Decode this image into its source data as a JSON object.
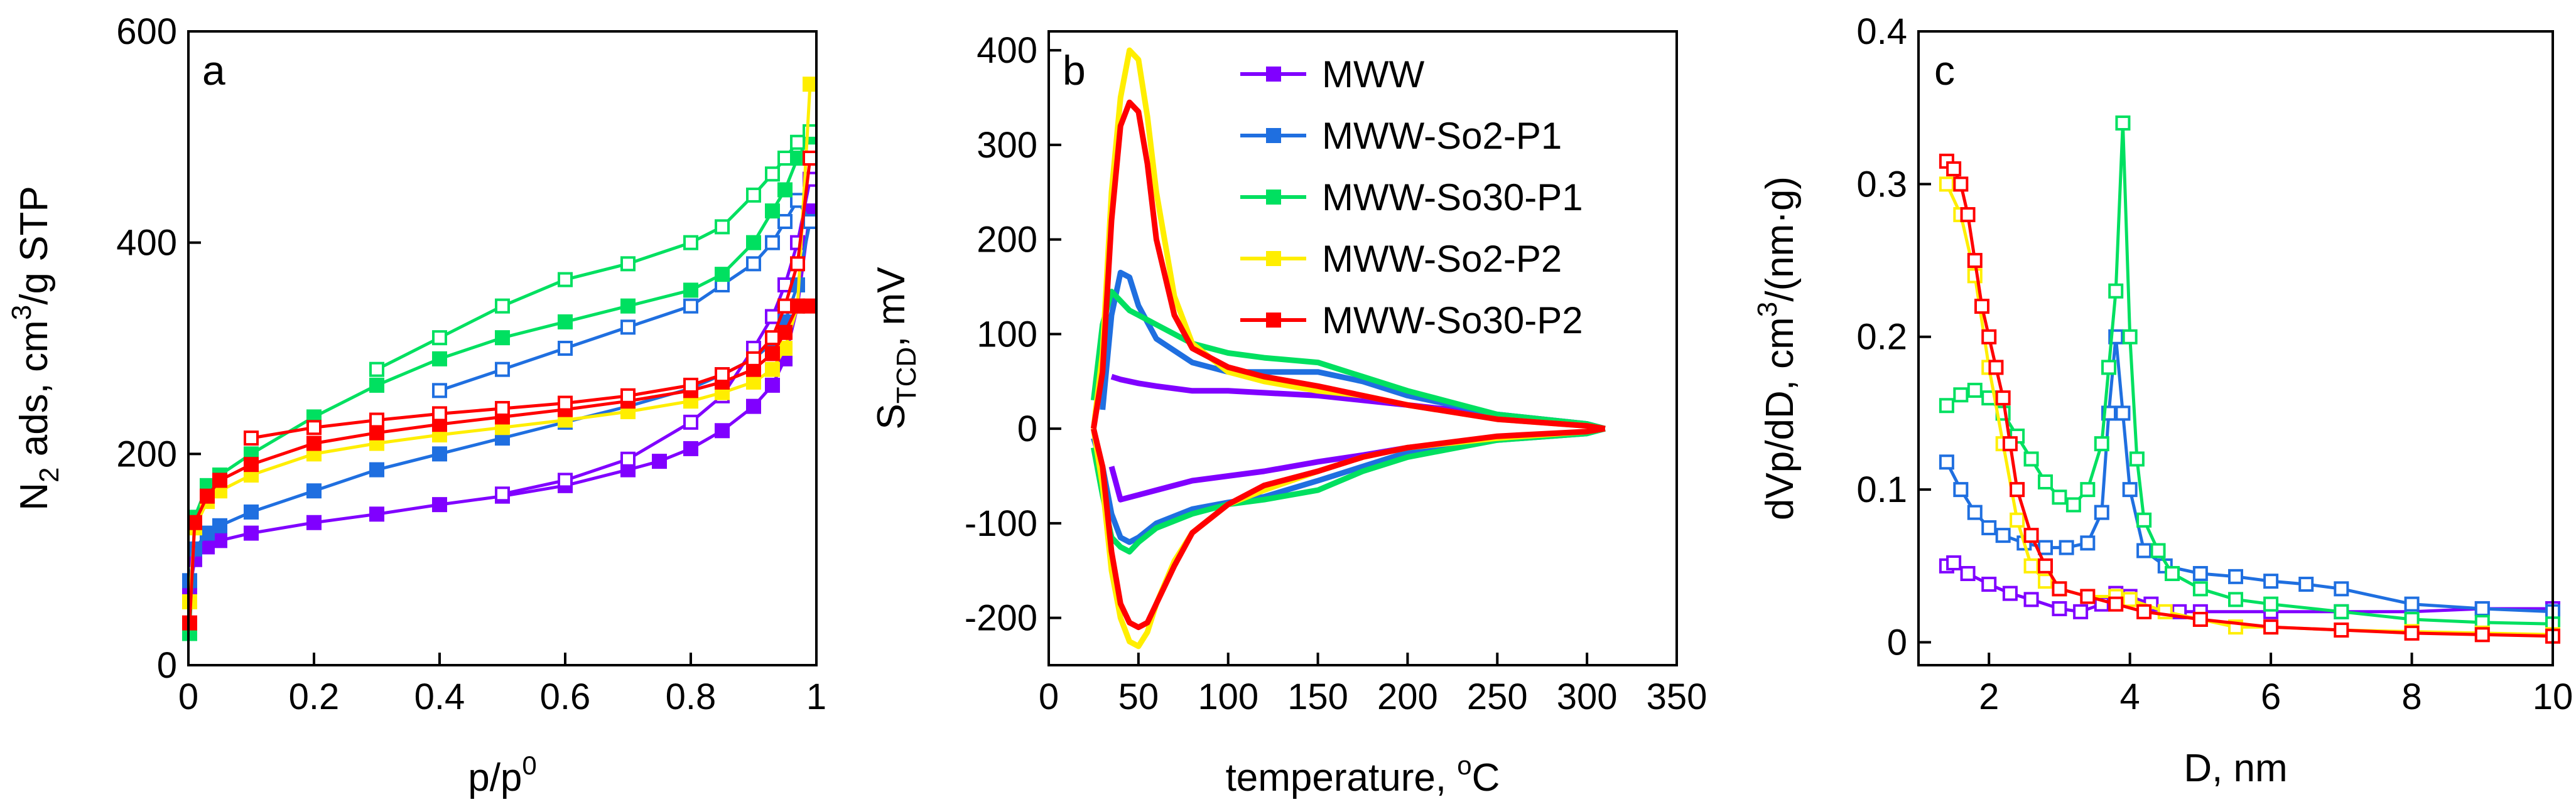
{
  "chart_data": [
    {
      "type": "line",
      "panel_label": "a",
      "xlabel_base": "p/p",
      "xlabel_sup": "0",
      "ylabel_a": "N",
      "ylabel_sub": "2",
      "ylabel_b": " ads, cm",
      "ylabel_sup": "3",
      "ylabel_c": "/g STP",
      "xlim": [
        0,
        1
      ],
      "ylim": [
        0,
        600
      ],
      "xticks": [
        0,
        0.2,
        0.4,
        0.6,
        0.8,
        1
      ],
      "xtick_labels": [
        "0",
        "0.2",
        "0.4",
        "0.6",
        "0.8",
        "1"
      ],
      "yticks": [
        0,
        200,
        400,
        600
      ],
      "ytick_labels": [
        "0",
        "200",
        "400",
        "600"
      ],
      "series": [
        {
          "name": "MWW adsorption",
          "color": "#8000ff",
          "marker": "filled",
          "x": [
            0.002,
            0.01,
            0.03,
            0.05,
            0.1,
            0.2,
            0.3,
            0.4,
            0.5,
            0.6,
            0.7,
            0.75,
            0.8,
            0.85,
            0.9,
            0.93,
            0.95,
            0.97,
            0.99
          ],
          "y": [
            70,
            100,
            112,
            118,
            125,
            135,
            143,
            152,
            160,
            170,
            185,
            193,
            205,
            222,
            245,
            265,
            290,
            340,
            430
          ]
        },
        {
          "name": "MWW desorption",
          "color": "#8000ff",
          "marker": "open",
          "x": [
            0.5,
            0.6,
            0.7,
            0.8,
            0.85,
            0.9,
            0.93,
            0.95,
            0.97,
            0.99
          ],
          "y": [
            162,
            175,
            195,
            230,
            255,
            300,
            330,
            360,
            400,
            460
          ]
        },
        {
          "name": "MWW-So2-P1 adsorption",
          "color": "#1f6fe0",
          "marker": "filled",
          "x": [
            0.002,
            0.01,
            0.03,
            0.05,
            0.1,
            0.2,
            0.3,
            0.4,
            0.5,
            0.6,
            0.7,
            0.8,
            0.85,
            0.9,
            0.93,
            0.95,
            0.97,
            0.99
          ],
          "y": [
            80,
            110,
            125,
            132,
            145,
            165,
            185,
            200,
            215,
            230,
            245,
            262,
            275,
            290,
            305,
            325,
            360,
            420
          ]
        },
        {
          "name": "MWW-So2-P1 desorption",
          "color": "#1f6fe0",
          "marker": "open",
          "x": [
            0.4,
            0.5,
            0.6,
            0.7,
            0.8,
            0.85,
            0.9,
            0.93,
            0.95,
            0.97,
            0.99
          ],
          "y": [
            260,
            280,
            300,
            320,
            340,
            360,
            380,
            400,
            420,
            440,
            420
          ]
        },
        {
          "name": "MWW-So30-P1 adsorption",
          "color": "#00e060",
          "marker": "filled",
          "x": [
            0.002,
            0.01,
            0.03,
            0.05,
            0.1,
            0.2,
            0.3,
            0.4,
            0.5,
            0.6,
            0.7,
            0.8,
            0.85,
            0.9,
            0.93,
            0.95,
            0.97,
            0.99
          ],
          "y": [
            30,
            140,
            170,
            180,
            200,
            235,
            265,
            290,
            310,
            325,
            340,
            355,
            370,
            400,
            430,
            450,
            480,
            500
          ]
        },
        {
          "name": "MWW-So30-P1 desorption",
          "color": "#00e060",
          "marker": "open",
          "x": [
            0.3,
            0.4,
            0.5,
            0.6,
            0.7,
            0.8,
            0.85,
            0.9,
            0.93,
            0.95,
            0.97,
            0.99
          ],
          "y": [
            280,
            310,
            340,
            365,
            380,
            400,
            415,
            445,
            465,
            480,
            495,
            505
          ]
        },
        {
          "name": "MWW-So2-P2 adsorption",
          "color": "#ffee00",
          "marker": "filled",
          "x": [
            0.002,
            0.01,
            0.03,
            0.05,
            0.1,
            0.2,
            0.3,
            0.4,
            0.5,
            0.6,
            0.7,
            0.8,
            0.85,
            0.9,
            0.93,
            0.95,
            0.97,
            0.99
          ],
          "y": [
            60,
            130,
            155,
            165,
            180,
            200,
            210,
            218,
            225,
            232,
            240,
            250,
            258,
            268,
            280,
            300,
            340,
            550
          ]
        },
        {
          "name": "MWW-So30-P2 adsorption",
          "color": "#ff0000",
          "marker": "filled",
          "x": [
            0.002,
            0.01,
            0.03,
            0.05,
            0.1,
            0.2,
            0.3,
            0.4,
            0.5,
            0.6,
            0.7,
            0.8,
            0.85,
            0.9,
            0.93,
            0.95,
            0.97,
            0.99
          ],
          "y": [
            40,
            135,
            160,
            175,
            190,
            210,
            220,
            228,
            235,
            242,
            250,
            260,
            268,
            280,
            295,
            315,
            340,
            340
          ]
        },
        {
          "name": "MWW-So30-P2 desorption",
          "color": "#ff0000",
          "marker": "open",
          "x": [
            0.1,
            0.2,
            0.3,
            0.4,
            0.5,
            0.6,
            0.7,
            0.8,
            0.85,
            0.9,
            0.93,
            0.95,
            0.97,
            0.99
          ],
          "y": [
            215,
            225,
            232,
            238,
            243,
            248,
            255,
            265,
            275,
            290,
            310,
            340,
            380,
            480
          ]
        }
      ]
    },
    {
      "type": "line",
      "panel_label": "b",
      "xlabel_a": "temperature, ",
      "xlabel_sup": "o",
      "xlabel_b": "C",
      "ylabel_a": "S",
      "ylabel_sub": "TCD",
      "ylabel_b": ", mV",
      "xlim": [
        0,
        350
      ],
      "ylim": [
        -250,
        420
      ],
      "xticks": [
        0,
        50,
        100,
        150,
        200,
        250,
        300,
        350
      ],
      "xtick_labels": [
        "0",
        "50",
        "100",
        "150",
        "200",
        "250",
        "300",
        "350"
      ],
      "yticks": [
        -200,
        -100,
        0,
        100,
        200,
        300,
        400
      ],
      "ytick_labels": [
        "-200",
        "-100",
        "0",
        "100",
        "200",
        "300",
        "400"
      ],
      "series": [
        {
          "name": "MWW",
          "color": "#8000ff",
          "x": [
            35,
            40,
            50,
            60,
            80,
            100,
            120,
            150,
            175,
            200,
            250,
            300,
            310
          ],
          "y": [
            55,
            52,
            48,
            45,
            40,
            40,
            38,
            35,
            30,
            25,
            15,
            5,
            0
          ],
          "x2": [
            35,
            40,
            50,
            60,
            80,
            100,
            120,
            150,
            175,
            200,
            250,
            300,
            310
          ],
          "y2": [
            -40,
            -75,
            -70,
            -65,
            -55,
            -50,
            -45,
            -35,
            -28,
            -20,
            -10,
            -3,
            0
          ]
        },
        {
          "name": "MWW-So2-P1",
          "color": "#1f6fe0",
          "x": [
            30,
            35,
            40,
            45,
            50,
            60,
            80,
            100,
            120,
            150,
            175,
            200,
            250,
            300,
            310
          ],
          "y": [
            20,
            120,
            165,
            160,
            130,
            95,
            70,
            60,
            60,
            60,
            50,
            35,
            15,
            5,
            0
          ],
          "x2": [
            25,
            30,
            35,
            40,
            45,
            50,
            60,
            80,
            100,
            120,
            150,
            175,
            200,
            250,
            300,
            310
          ],
          "y2": [
            -10,
            -40,
            -90,
            -115,
            -120,
            -115,
            -100,
            -85,
            -78,
            -72,
            -55,
            -40,
            -25,
            -12,
            -5,
            0
          ]
        },
        {
          "name": "MWW-So30-P1",
          "color": "#00e060",
          "x": [
            25,
            30,
            35,
            40,
            45,
            50,
            60,
            80,
            100,
            120,
            150,
            175,
            200,
            250,
            300,
            310
          ],
          "y": [
            30,
            110,
            145,
            135,
            125,
            120,
            110,
            90,
            80,
            75,
            70,
            55,
            40,
            15,
            5,
            0
          ],
          "x2": [
            25,
            30,
            35,
            40,
            45,
            50,
            60,
            80,
            100,
            120,
            150,
            175,
            200,
            250,
            300,
            310
          ],
          "y2": [
            -20,
            -70,
            -115,
            -125,
            -130,
            -120,
            -105,
            -90,
            -80,
            -75,
            -65,
            -45,
            -30,
            -12,
            -5,
            0
          ]
        },
        {
          "name": "MWW-So2-P2",
          "color": "#ffee00",
          "x": [
            25,
            30,
            35,
            40,
            45,
            50,
            55,
            60,
            70,
            80,
            100,
            120,
            150,
            175,
            200,
            250,
            300,
            310
          ],
          "y": [
            0,
            80,
            250,
            350,
            400,
            390,
            330,
            250,
            140,
            90,
            60,
            50,
            40,
            35,
            25,
            10,
            3,
            0
          ],
          "x2": [
            25,
            30,
            35,
            40,
            45,
            50,
            55,
            60,
            70,
            80,
            100,
            120,
            150,
            175,
            200,
            250,
            300,
            310
          ],
          "y2": [
            0,
            -60,
            -150,
            -200,
            -225,
            -230,
            -215,
            -185,
            -140,
            -110,
            -80,
            -65,
            -45,
            -30,
            -20,
            -10,
            -3,
            0
          ]
        },
        {
          "name": "MWW-So30-P2",
          "color": "#ff0000",
          "x": [
            25,
            30,
            35,
            40,
            45,
            50,
            55,
            60,
            70,
            80,
            100,
            120,
            150,
            175,
            200,
            250,
            300,
            310
          ],
          "y": [
            0,
            60,
            220,
            320,
            345,
            335,
            280,
            200,
            120,
            85,
            65,
            55,
            45,
            35,
            25,
            10,
            3,
            0
          ],
          "x2": [
            25,
            30,
            35,
            40,
            45,
            50,
            55,
            60,
            70,
            80,
            100,
            120,
            150,
            175,
            200,
            250,
            300,
            310
          ],
          "y2": [
            0,
            -40,
            -130,
            -185,
            -205,
            -210,
            -205,
            -185,
            -145,
            -110,
            -80,
            -60,
            -45,
            -30,
            -20,
            -8,
            -3,
            0
          ]
        }
      ]
    },
    {
      "type": "line",
      "panel_label": "c",
      "xlabel": "D, nm",
      "ylabel_a": "dVp/dD, cm",
      "ylabel_sup": "3",
      "ylabel_b": "/(nm·g)",
      "xlim": [
        1,
        10
      ],
      "ylim": [
        -0.015,
        0.4
      ],
      "xticks": [
        2,
        4,
        6,
        8,
        10
      ],
      "xtick_labels": [
        "2",
        "4",
        "6",
        "8",
        "10"
      ],
      "yticks": [
        0,
        0.1,
        0.2,
        0.3,
        0.4
      ],
      "ytick_labels": [
        "0",
        "0.1",
        "0.2",
        "0.3",
        "0.4"
      ],
      "series": [
        {
          "name": "MWW",
          "color": "#8000ff",
          "x": [
            1.4,
            1.5,
            1.7,
            2.0,
            2.3,
            2.6,
            3.0,
            3.3,
            3.6,
            3.8,
            4.0,
            4.3,
            4.7,
            5.0,
            6,
            7,
            8,
            9,
            10
          ],
          "y": [
            0.05,
            0.052,
            0.045,
            0.038,
            0.032,
            0.028,
            0.022,
            0.02,
            0.025,
            0.032,
            0.03,
            0.025,
            0.02,
            0.02,
            0.02,
            0.02,
            0.02,
            0.022,
            0.022
          ]
        },
        {
          "name": "MWW-So2-P1",
          "color": "#1f6fe0",
          "x": [
            1.4,
            1.6,
            1.8,
            2.0,
            2.2,
            2.5,
            2.8,
            3.1,
            3.4,
            3.6,
            3.7,
            3.8,
            3.9,
            4.0,
            4.2,
            4.5,
            5.0,
            5.5,
            6,
            6.5,
            7,
            8,
            9,
            10
          ],
          "y": [
            0.118,
            0.1,
            0.085,
            0.075,
            0.07,
            0.065,
            0.062,
            0.062,
            0.065,
            0.085,
            0.15,
            0.2,
            0.15,
            0.1,
            0.06,
            0.05,
            0.045,
            0.043,
            0.04,
            0.038,
            0.035,
            0.025,
            0.022,
            0.02
          ]
        },
        {
          "name": "MWW-So30-P1",
          "color": "#00e060",
          "x": [
            1.4,
            1.6,
            1.8,
            2.0,
            2.2,
            2.4,
            2.6,
            2.8,
            3.0,
            3.2,
            3.4,
            3.6,
            3.7,
            3.8,
            3.9,
            4.0,
            4.1,
            4.2,
            4.4,
            4.6,
            5.0,
            5.5,
            6,
            7,
            8,
            9,
            10
          ],
          "y": [
            0.155,
            0.162,
            0.165,
            0.16,
            0.15,
            0.135,
            0.12,
            0.105,
            0.095,
            0.09,
            0.1,
            0.13,
            0.18,
            0.23,
            0.34,
            0.2,
            0.12,
            0.08,
            0.06,
            0.045,
            0.035,
            0.028,
            0.025,
            0.02,
            0.015,
            0.013,
            0.012
          ]
        },
        {
          "name": "MWW-So2-P2",
          "color": "#ffee00",
          "x": [
            1.4,
            1.6,
            1.8,
            2.0,
            2.2,
            2.4,
            2.6,
            2.8,
            3.0,
            3.4,
            3.8,
            4.0,
            4.5,
            5,
            5.5,
            6,
            7,
            8,
            9,
            10
          ],
          "y": [
            0.3,
            0.28,
            0.24,
            0.18,
            0.13,
            0.08,
            0.05,
            0.04,
            0.035,
            0.03,
            0.03,
            0.028,
            0.02,
            0.015,
            0.01,
            0.01,
            0.008,
            0.007,
            0.006,
            0.005
          ]
        },
        {
          "name": "MWW-So30-P2",
          "color": "#ff0000",
          "x": [
            1.4,
            1.5,
            1.6,
            1.7,
            1.8,
            1.9,
            2.0,
            2.1,
            2.2,
            2.3,
            2.4,
            2.6,
            2.8,
            3.0,
            3.4,
            3.8,
            4.2,
            5,
            6,
            7,
            8,
            9,
            10
          ],
          "y": [
            0.315,
            0.31,
            0.3,
            0.28,
            0.25,
            0.22,
            0.2,
            0.18,
            0.16,
            0.13,
            0.1,
            0.07,
            0.05,
            0.035,
            0.03,
            0.025,
            0.02,
            0.015,
            0.01,
            0.008,
            0.006,
            0.005,
            0.004
          ]
        }
      ]
    }
  ],
  "legend": {
    "entries": [
      "MWW",
      "MWW-So2-P1",
      "MWW-So30-P1",
      "MWW-So2-P2",
      "MWW-So30-P2"
    ],
    "colors": [
      "#8000ff",
      "#1f6fe0",
      "#00e060",
      "#ffee00",
      "#ff0000"
    ]
  }
}
